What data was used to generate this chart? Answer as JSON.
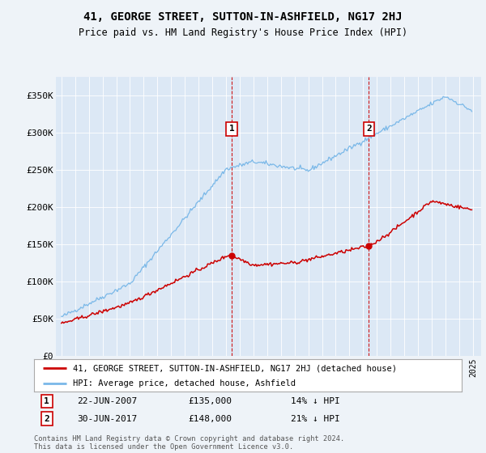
{
  "title": "41, GEORGE STREET, SUTTON-IN-ASHFIELD, NG17 2HJ",
  "subtitle": "Price paid vs. HM Land Registry's House Price Index (HPI)",
  "ylim": [
    0,
    370000
  ],
  "yticks": [
    0,
    50000,
    100000,
    150000,
    200000,
    250000,
    300000,
    350000
  ],
  "ytick_labels": [
    "£0",
    "£50K",
    "£100K",
    "£150K",
    "£200K",
    "£250K",
    "£300K",
    "£350K"
  ],
  "hpi_color": "#7ab8e8",
  "price_color": "#cc0000",
  "marker1_date": "22-JUN-2007",
  "marker1_price": "£135,000",
  "marker1_note": "14% ↓ HPI",
  "marker2_date": "30-JUN-2017",
  "marker2_price": "£148,000",
  "marker2_note": "21% ↓ HPI",
  "legend_label1": "41, GEORGE STREET, SUTTON-IN-ASHFIELD, NG17 2HJ (detached house)",
  "legend_label2": "HPI: Average price, detached house, Ashfield",
  "footer": "Contains HM Land Registry data © Crown copyright and database right 2024.\nThis data is licensed under the Open Government Licence v3.0.",
  "bg_color": "#eef3f8",
  "plot_bg_color": "#dce8f5"
}
